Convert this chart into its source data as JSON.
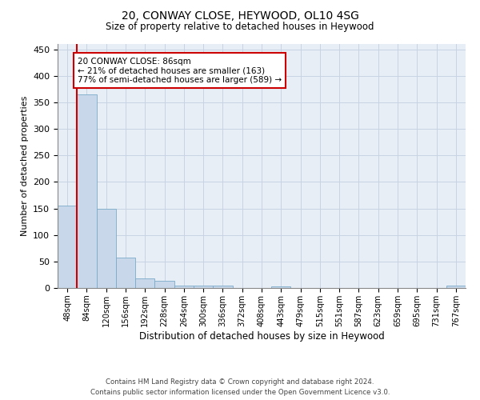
{
  "title": "20, CONWAY CLOSE, HEYWOOD, OL10 4SG",
  "subtitle": "Size of property relative to detached houses in Heywood",
  "xlabel": "Distribution of detached houses by size in Heywood",
  "ylabel": "Number of detached properties",
  "footer_line1": "Contains HM Land Registry data © Crown copyright and database right 2024.",
  "footer_line2": "Contains public sector information licensed under the Open Government Licence v3.0.",
  "property_label": "20 CONWAY CLOSE: 86sqm",
  "annotation_line2": "← 21% of detached houses are smaller (163)",
  "annotation_line3": "77% of semi-detached houses are larger (589) →",
  "bar_color": "#c8d8ea",
  "bar_edge_color": "#7aaac8",
  "marker_color": "#cc0000",
  "annotation_box_edge": "#cc0000",
  "annotation_box_face": "white",
  "categories": [
    "48sqm",
    "84sqm",
    "120sqm",
    "156sqm",
    "192sqm",
    "228sqm",
    "264sqm",
    "300sqm",
    "336sqm",
    "372sqm",
    "408sqm",
    "443sqm",
    "479sqm",
    "515sqm",
    "551sqm",
    "587sqm",
    "623sqm",
    "659sqm",
    "695sqm",
    "731sqm",
    "767sqm"
  ],
  "values": [
    155,
    365,
    150,
    58,
    18,
    13,
    5,
    4,
    5,
    0,
    0,
    3,
    0,
    0,
    0,
    0,
    0,
    0,
    0,
    0,
    4
  ],
  "ylim": [
    0,
    460
  ],
  "yticks": [
    0,
    50,
    100,
    150,
    200,
    250,
    300,
    350,
    400,
    450
  ],
  "grid_color": "#c8d4e4",
  "background_color": "#e8eef6"
}
